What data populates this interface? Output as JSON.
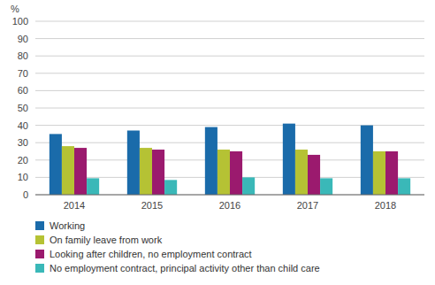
{
  "chart_data": {
    "type": "bar",
    "categories": [
      "2014",
      "2015",
      "2016",
      "2017",
      "2018"
    ],
    "series": [
      {
        "name": "Working",
        "color": "#1a6baa",
        "values": [
          35,
          37,
          39,
          41,
          40
        ]
      },
      {
        "name": "On family leave from work",
        "color": "#b5c234",
        "values": [
          28,
          27,
          26,
          26,
          25
        ]
      },
      {
        "name": "Looking after children, no employment contract",
        "color": "#9b1a6e",
        "values": [
          27,
          26,
          25,
          23,
          25
        ]
      },
      {
        "name": "No employment contract, principal activity other than child care",
        "color": "#3ab8b8",
        "values": [
          9.5,
          8.5,
          10,
          9.5,
          9.5
        ]
      }
    ],
    "y_label": "%",
    "ylim": [
      0,
      100
    ],
    "yticks": [
      0,
      10,
      20,
      30,
      40,
      50,
      60,
      70,
      80,
      90,
      100
    ],
    "grid": true,
    "legend": "bottom"
  }
}
